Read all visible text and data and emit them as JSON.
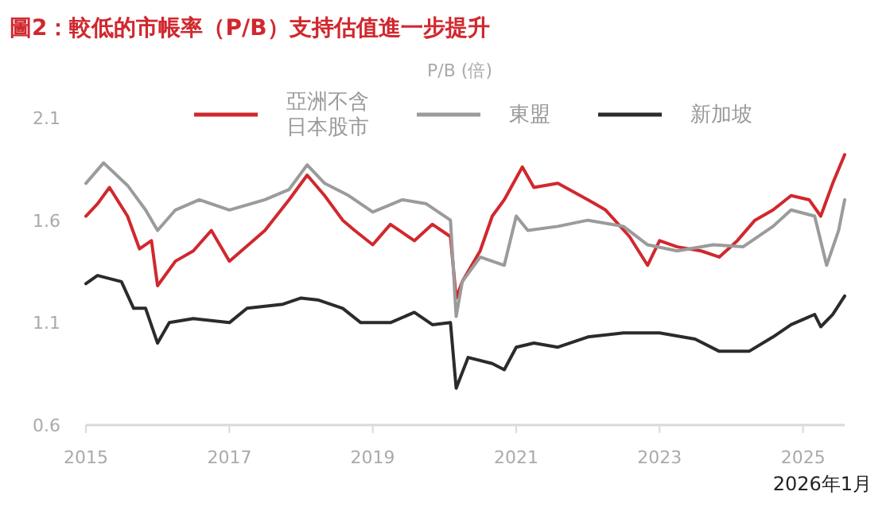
{
  "chart_data": {
    "type": "line",
    "title": "圖2：較低的市帳率（P/B）支持估值進一步提升",
    "ylabel": "P/B (倍)",
    "annotations": [
      "2026年1月"
    ],
    "xlim": [
      "2015-01",
      "2025-08"
    ],
    "xticks": [
      "2015",
      "2017",
      "2019",
      "2021",
      "2023",
      "2025"
    ],
    "ylim": [
      0.6,
      2.1
    ],
    "yticks": [
      0.6,
      1.1,
      1.6,
      2.1
    ],
    "grid": false,
    "legend": "top",
    "series": [
      {
        "name": "亞洲不含日本股市",
        "color": "#d0282e",
        "x": [
          "2015-01",
          "2015-03",
          "2015-05",
          "2015-08",
          "2015-10",
          "2015-12",
          "2016-01",
          "2016-04",
          "2016-07",
          "2016-10",
          "2017-01",
          "2017-07",
          "2017-11",
          "2018-02",
          "2018-05",
          "2018-08",
          "2018-10",
          "2019-01",
          "2019-04",
          "2019-08",
          "2019-11",
          "2020-02",
          "2020-03",
          "2020-04",
          "2020-07",
          "2020-09",
          "2020-11",
          "2021-02",
          "2021-04",
          "2021-08",
          "2022-01",
          "2022-04",
          "2022-08",
          "2022-11",
          "2023-01",
          "2023-04",
          "2023-08",
          "2023-11",
          "2024-02",
          "2024-05",
          "2024-08",
          "2024-11",
          "2025-02",
          "2025-04",
          "2025-06",
          "2025-08"
        ],
        "values": [
          1.62,
          1.68,
          1.76,
          1.62,
          1.46,
          1.5,
          1.28,
          1.4,
          1.45,
          1.55,
          1.4,
          1.55,
          1.7,
          1.82,
          1.72,
          1.6,
          1.55,
          1.48,
          1.58,
          1.5,
          1.58,
          1.52,
          1.22,
          1.3,
          1.45,
          1.62,
          1.7,
          1.86,
          1.76,
          1.78,
          1.7,
          1.65,
          1.52,
          1.38,
          1.5,
          1.47,
          1.45,
          1.42,
          1.5,
          1.6,
          1.65,
          1.72,
          1.7,
          1.62,
          1.78,
          1.92
        ]
      },
      {
        "name": "東盟",
        "color": "#9b9b9b",
        "x": [
          "2015-01",
          "2015-04",
          "2015-08",
          "2015-11",
          "2016-01",
          "2016-04",
          "2016-08",
          "2017-01",
          "2017-07",
          "2017-11",
          "2018-02",
          "2018-05",
          "2018-09",
          "2019-01",
          "2019-06",
          "2019-10",
          "2020-02",
          "2020-03",
          "2020-04",
          "2020-07",
          "2020-11",
          "2021-01",
          "2021-03",
          "2021-08",
          "2022-01",
          "2022-07",
          "2022-11",
          "2023-04",
          "2023-10",
          "2024-03",
          "2024-08",
          "2024-11",
          "2025-03",
          "2025-05",
          "2025-07",
          "2025-08"
        ],
        "values": [
          1.78,
          1.88,
          1.77,
          1.65,
          1.55,
          1.65,
          1.7,
          1.65,
          1.7,
          1.75,
          1.87,
          1.78,
          1.72,
          1.64,
          1.7,
          1.68,
          1.6,
          1.13,
          1.3,
          1.42,
          1.38,
          1.62,
          1.55,
          1.57,
          1.6,
          1.57,
          1.48,
          1.45,
          1.48,
          1.47,
          1.57,
          1.65,
          1.62,
          1.38,
          1.55,
          1.7
        ]
      },
      {
        "name": "新加坡",
        "color": "#2b2b2b",
        "x": [
          "2015-01",
          "2015-03",
          "2015-07",
          "2015-09",
          "2015-11",
          "2016-01",
          "2016-03",
          "2016-07",
          "2017-01",
          "2017-04",
          "2017-10",
          "2018-01",
          "2018-04",
          "2018-08",
          "2018-11",
          "2019-04",
          "2019-08",
          "2019-11",
          "2020-02",
          "2020-03",
          "2020-05",
          "2020-09",
          "2020-11",
          "2021-01",
          "2021-04",
          "2021-08",
          "2022-01",
          "2022-07",
          "2023-01",
          "2023-07",
          "2023-11",
          "2024-04",
          "2024-08",
          "2024-11",
          "2025-03",
          "2025-04",
          "2025-06",
          "2025-08"
        ],
        "values": [
          1.29,
          1.33,
          1.3,
          1.17,
          1.17,
          1.0,
          1.1,
          1.12,
          1.1,
          1.17,
          1.19,
          1.22,
          1.21,
          1.17,
          1.1,
          1.1,
          1.15,
          1.09,
          1.1,
          0.78,
          0.93,
          0.9,
          0.87,
          0.98,
          1.0,
          0.98,
          1.03,
          1.05,
          1.05,
          1.02,
          0.96,
          0.96,
          1.03,
          1.09,
          1.14,
          1.08,
          1.14,
          1.23
        ]
      }
    ]
  }
}
